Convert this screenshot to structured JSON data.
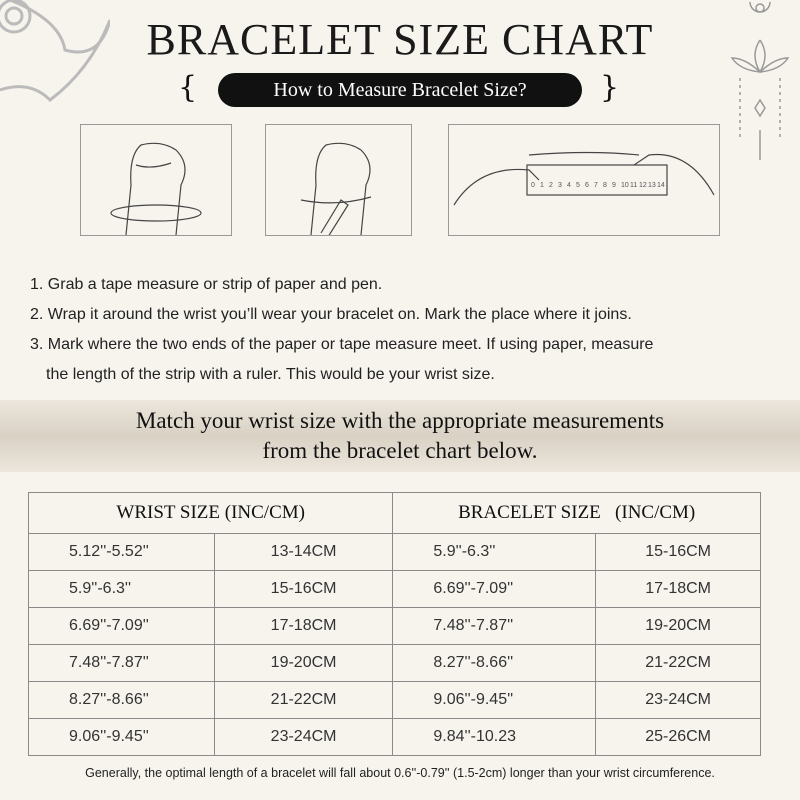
{
  "header": {
    "title": "BRACELET SIZE CHART",
    "subtitle": "How to Measure Bracelet Size?"
  },
  "illustrations": {
    "ruler_numbers": [
      "0",
      "1",
      "2",
      "3",
      "4",
      "5",
      "6",
      "7",
      "8",
      "9",
      "10",
      "11",
      "12",
      "13",
      "14"
    ]
  },
  "steps": [
    "1. Grab a tape measure or strip of paper and pen.",
    "2. Wrap it around the wrist you’ll wear your bracelet on. Mark the place where it joins.",
    "3. Mark where the two ends of the paper or tape measure meet. If using paper, measure",
    "the length of the strip with a ruler. This would be your wrist size."
  ],
  "banner": {
    "line1": "Match your wrist size with the appropriate measurements",
    "line2": "from the bracelet chart below."
  },
  "table": {
    "headers": [
      "WRIST SIZE (INC/CM)",
      "BRACELET SIZE   (INC/CM)"
    ],
    "rows": [
      [
        "5.12''-5.52''",
        "13-14CM",
        "5.9''-6.3''",
        "15-16CM"
      ],
      [
        "5.9''-6.3''",
        "15-16CM",
        "6.69''-7.09''",
        "17-18CM"
      ],
      [
        "6.69''-7.09''",
        "17-18CM",
        "7.48''-7.87''",
        "19-20CM"
      ],
      [
        "7.48''-7.87''",
        "19-20CM",
        "8.27''-8.66''",
        "21-22CM"
      ],
      [
        "8.27''-8.66''",
        "21-22CM",
        "9.06''-9.45''",
        "23-24CM"
      ],
      [
        "9.06''-9.45''",
        "23-24CM",
        "9.84''-10.23",
        "25-26CM"
      ]
    ]
  },
  "footnote": "Generally, the optimal length of a bracelet will fall about 0.6''-0.79'' (1.5-2cm) longer than your wrist circumference."
}
